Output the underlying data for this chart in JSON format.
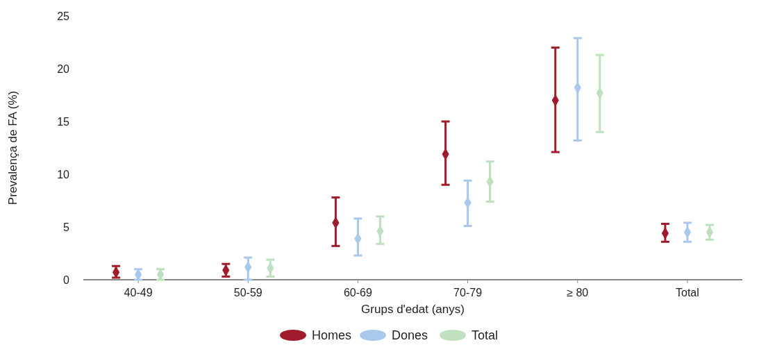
{
  "chart_data": {
    "type": "scatter",
    "xlabel": "Grups d'edat (anys)",
    "ylabel": "Prevalença de FA (%)",
    "categories": [
      "40-49",
      "50-59",
      "60-69",
      "70-79",
      "≥ 80",
      "Total"
    ],
    "ylim": [
      0,
      25
    ],
    "yticks": [
      0,
      5,
      10,
      15,
      20,
      25
    ],
    "grid": false,
    "marker": "diamond",
    "legend": "bottom",
    "series": [
      {
        "name": "Homes",
        "color": "#a01c2c",
        "values": [
          0.7,
          0.9,
          5.4,
          11.9,
          17.0,
          4.4
        ],
        "errors": [
          [
            0.2,
            1.3
          ],
          [
            0.3,
            1.5
          ],
          [
            3.2,
            7.8
          ],
          [
            9.0,
            15.0
          ],
          [
            12.1,
            22.0
          ],
          [
            3.6,
            5.3
          ]
        ]
      },
      {
        "name": "Dones",
        "color": "#a8c8ec",
        "values": [
          0.5,
          1.2,
          3.9,
          7.3,
          18.2,
          4.5
        ],
        "errors": [
          [
            0.0,
            1.0
          ],
          [
            0.0,
            2.1
          ],
          [
            2.3,
            5.8
          ],
          [
            5.1,
            9.4
          ],
          [
            13.2,
            22.9
          ],
          [
            3.6,
            5.4
          ]
        ]
      },
      {
        "name": "Total",
        "color": "#bfe0bf",
        "values": [
          0.5,
          1.1,
          4.6,
          9.3,
          17.7,
          4.5
        ],
        "errors": [
          [
            0.0,
            1.0
          ],
          [
            0.3,
            1.9
          ],
          [
            3.4,
            6.0
          ],
          [
            7.4,
            11.2
          ],
          [
            14.0,
            21.3
          ],
          [
            3.8,
            5.2
          ]
        ]
      }
    ]
  }
}
